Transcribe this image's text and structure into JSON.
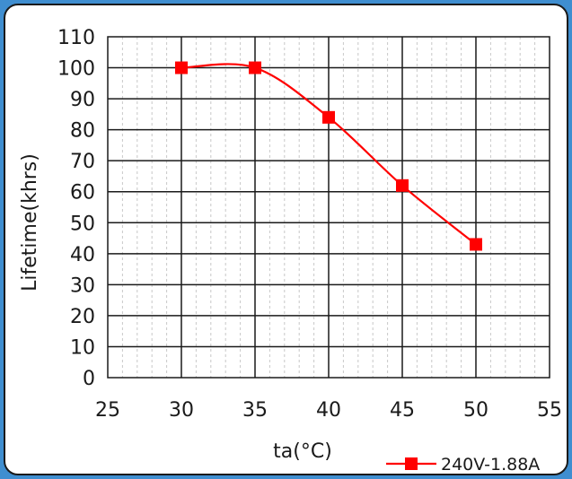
{
  "chart_data": {
    "type": "line",
    "title": "",
    "xlabel": "ta(°C)",
    "ylabel": "Lifetime(khrs)",
    "xlim": [
      25,
      55
    ],
    "ylim": [
      0,
      110
    ],
    "xticks": [
      25,
      30,
      35,
      40,
      45,
      50,
      55
    ],
    "yticks": [
      0,
      10,
      20,
      30,
      40,
      50,
      60,
      70,
      80,
      90,
      100,
      110
    ],
    "grid": true,
    "legend_position": "bottom-right",
    "series": [
      {
        "name": "240V-1.88A",
        "color": "#ff0000",
        "marker": "square",
        "x": [
          30,
          35,
          40,
          45,
          50
        ],
        "y": [
          100,
          100,
          84,
          62,
          43
        ]
      }
    ]
  }
}
